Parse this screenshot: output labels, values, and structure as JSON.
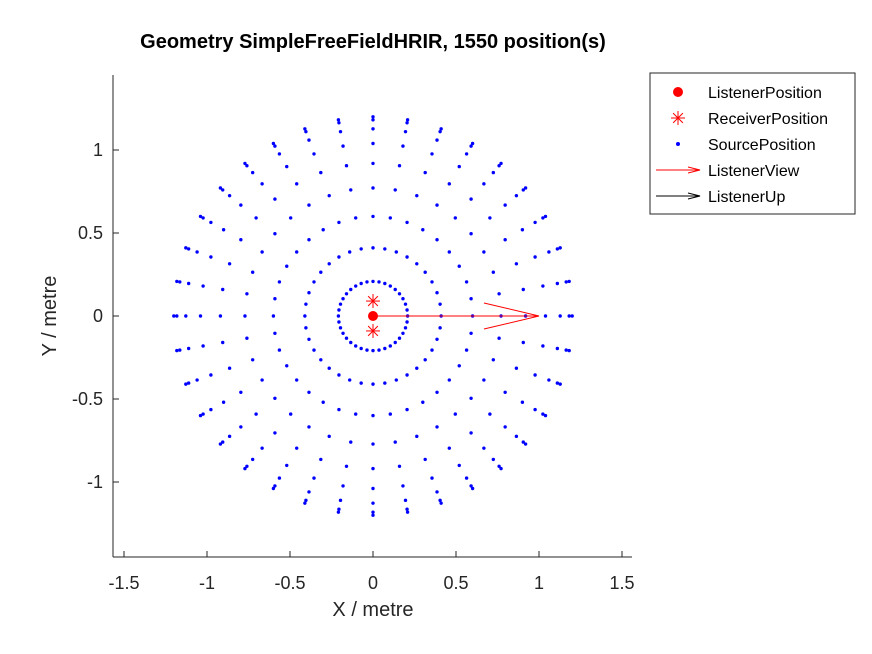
{
  "chart_data": {
    "type": "scatter",
    "title": "Geometry SimpleFreeFieldHRIR, 1550 position(s)",
    "xlabel": "X / metre",
    "ylabel": "Y / metre",
    "xlim": [
      -1.55,
      1.55
    ],
    "ylim": [
      -1.45,
      1.45
    ],
    "xticks": [
      "-1.5",
      "-1",
      "-0.5",
      "0",
      "0.5",
      "1",
      "1.5"
    ],
    "yticks": [
      "-1",
      "-0.5",
      "0",
      "0.5",
      "1"
    ],
    "grid": false,
    "legend_position": "top-right, outside plot area",
    "source_radius": 1.2,
    "elevation_rings_deg": [
      0,
      10,
      20,
      30,
      40,
      50,
      60,
      70,
      80,
      90
    ],
    "azimuth_step_deg": 10,
    "series": [
      {
        "name": "ListenerPosition",
        "marker": "filled-circle",
        "color": "#ff0000",
        "points": [
          [
            0,
            0
          ]
        ]
      },
      {
        "name": "ReceiverPosition",
        "marker": "asterisk",
        "color": "#ff0000",
        "points": [
          [
            0,
            0.09
          ],
          [
            0,
            -0.09
          ]
        ]
      },
      {
        "name": "SourcePosition",
        "marker": "dot",
        "color": "#0000ff",
        "count": 1550
      },
      {
        "name": "ListenerView",
        "marker": "arrow",
        "color": "#ff0000",
        "from": [
          0,
          0
        ],
        "to": [
          1,
          0
        ]
      },
      {
        "name": "ListenerUp",
        "marker": "arrow",
        "color": "#000000",
        "from": [
          0,
          0
        ],
        "to": [
          0,
          0
        ]
      }
    ]
  }
}
